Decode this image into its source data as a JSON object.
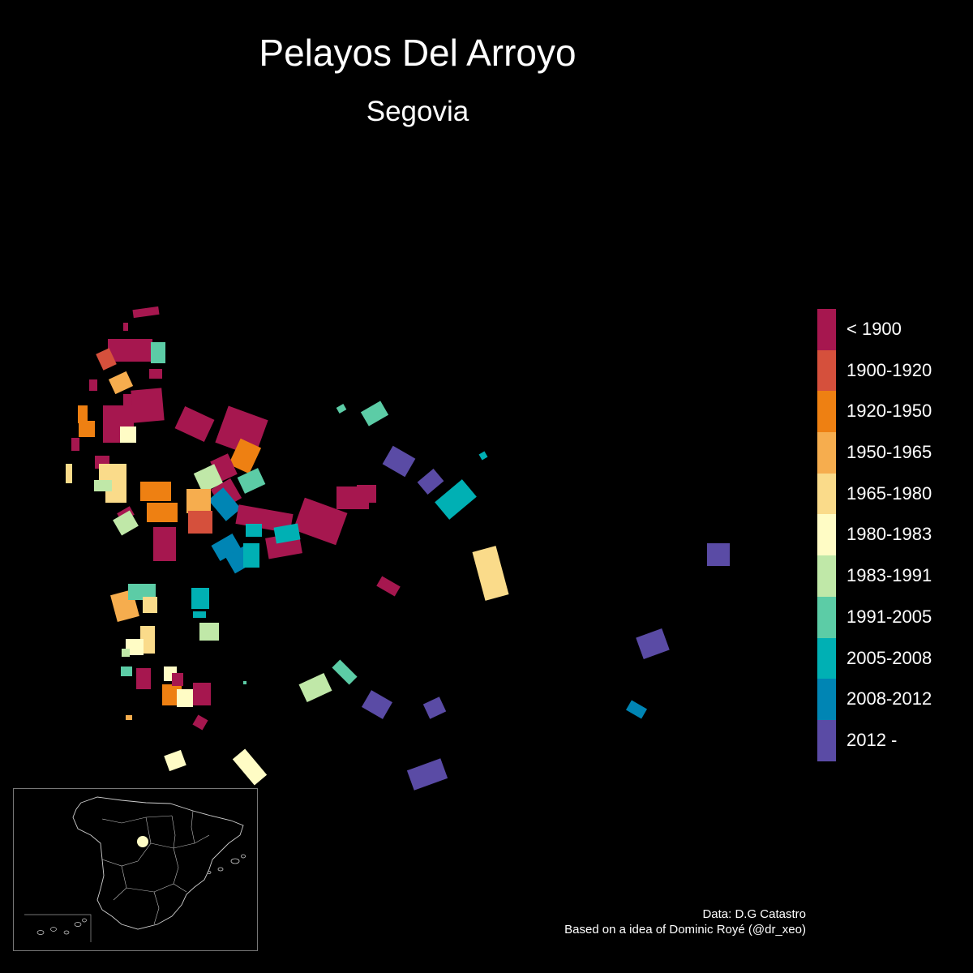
{
  "title": "Pelayos Del Arroyo",
  "subtitle": "Segovia",
  "legend": [
    {
      "label": "< 1900",
      "color": "#a6174f"
    },
    {
      "label": "1900-1920",
      "color": "#d5503c"
    },
    {
      "label": "1920-1950",
      "color": "#ee8012"
    },
    {
      "label": "1950-1965",
      "color": "#f6ad4e"
    },
    {
      "label": "1965-1980",
      "color": "#fadb8a"
    },
    {
      "label": "1980-1983",
      "color": "#fffcc5"
    },
    {
      "label": "1983-1991",
      "color": "#c0e8a8"
    },
    {
      "label": "1991-2005",
      "color": "#5ccca6"
    },
    {
      "label": "2005-2008",
      "color": "#00b0b4"
    },
    {
      "label": "2008-2012",
      "color": "#0085b4"
    },
    {
      "label": "2012 -",
      "color": "#5a4ba5"
    }
  ],
  "credits": {
    "line1": "Data: D.G Catastro",
    "line2": "Based on a idea of Dominic Royé (@dr_xeo)"
  },
  "inset": {
    "country": "Spain",
    "marker_color": "#fffcc5"
  }
}
